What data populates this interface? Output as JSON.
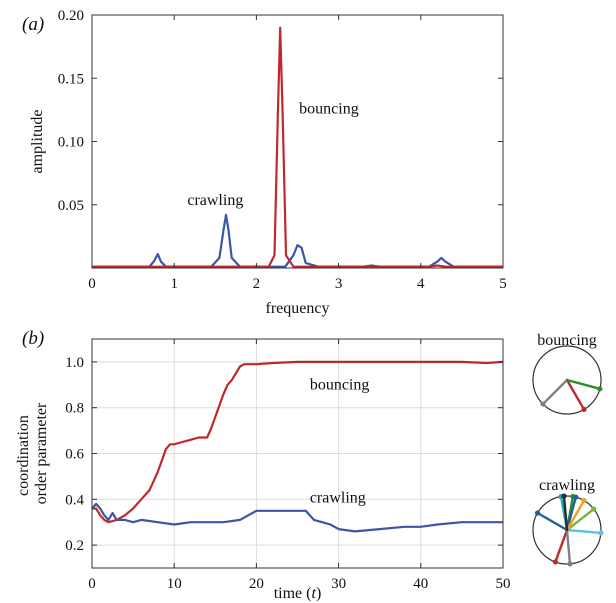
{
  "colors": {
    "bouncing": "#c0282c",
    "crawling": "#3c55a5",
    "axis": "#333333"
  },
  "panel_labels": {
    "a": "(a)",
    "b": "(b)"
  },
  "chart_data": [
    {
      "type": "line",
      "panel": "(a)",
      "xlabel": "frequency",
      "ylabel": "amplitude",
      "xlim": [
        0,
        5
      ],
      "ylim": [
        0,
        0.2
      ],
      "xticks": [
        0,
        1,
        2,
        3,
        4,
        5
      ],
      "xtick_labels": [
        "0",
        "1",
        "2",
        "3",
        "4",
        "5"
      ],
      "yticks": [
        0.05,
        0.1,
        0.15,
        0.2
      ],
      "ytick_labels": [
        "0.05",
        "0.10",
        "0.15",
        "0.20"
      ],
      "grid": false,
      "series": [
        {
          "name": "crawling",
          "color_key": "crawling",
          "x": [
            0,
            0.7,
            0.76,
            0.8,
            0.84,
            0.9,
            1.0,
            1.45,
            1.55,
            1.6,
            1.63,
            1.66,
            1.7,
            1.8,
            2.0,
            2.35,
            2.45,
            2.5,
            2.55,
            2.6,
            2.75,
            3.3,
            3.4,
            3.5,
            4.1,
            4.2,
            4.25,
            4.3,
            4.4,
            4.5,
            5.0
          ],
          "y": [
            0.001,
            0.001,
            0.006,
            0.011,
            0.005,
            0.001,
            0.001,
            0.001,
            0.008,
            0.03,
            0.042,
            0.03,
            0.008,
            0.001,
            0.001,
            0.001,
            0.01,
            0.018,
            0.016,
            0.004,
            0.001,
            0.001,
            0.002,
            0.001,
            0.001,
            0.005,
            0.008,
            0.005,
            0.001,
            0.001,
            0.001
          ]
        },
        {
          "name": "bouncing",
          "color_key": "bouncing",
          "x": [
            0,
            2.15,
            2.22,
            2.26,
            2.29,
            2.32,
            2.36,
            2.45,
            4.1,
            4.2,
            4.3,
            5.0
          ],
          "y": [
            0.001,
            0.001,
            0.01,
            0.12,
            0.19,
            0.12,
            0.01,
            0.001,
            0.001,
            0.002,
            0.001,
            0.001
          ]
        }
      ],
      "annotations": [
        {
          "text": "bouncing",
          "x": 2.52,
          "y": 0.122,
          "color_key": "bouncing"
        },
        {
          "text": "crawling",
          "x": 1.16,
          "y": 0.05,
          "color_key": "crawling"
        }
      ]
    },
    {
      "type": "line",
      "panel": "(b)",
      "xlabel": "time (t)",
      "xlabel_parts": [
        "time (",
        "t",
        ")"
      ],
      "ylabel": "coordination order parameter",
      "ylabel_lines": [
        "coordination",
        "order parameter"
      ],
      "xlim": [
        0,
        50
      ],
      "ylim": [
        0.1,
        1.1
      ],
      "xticks": [
        0,
        10,
        20,
        30,
        40,
        50
      ],
      "xtick_labels": [
        "0",
        "10",
        "20",
        "30",
        "40",
        "50"
      ],
      "yticks": [
        0.2,
        0.4,
        0.6,
        0.8,
        1.0
      ],
      "ytick_labels": [
        "0.2",
        "0.4",
        "0.6",
        "0.8",
        "1.0"
      ],
      "grid": true,
      "series": [
        {
          "name": "bouncing",
          "color_key": "bouncing",
          "x": [
            0,
            0.5,
            1,
            1.5,
            2,
            3,
            4,
            5,
            6,
            7,
            7.5,
            8,
            8.5,
            9,
            9.5,
            10,
            11,
            12,
            13,
            14,
            14.5,
            15,
            15.5,
            16,
            16.5,
            17,
            17.5,
            18,
            18.5,
            19,
            20,
            22,
            25,
            27,
            30,
            35,
            40,
            45,
            48,
            50
          ],
          "y": [
            0.36,
            0.36,
            0.33,
            0.31,
            0.3,
            0.31,
            0.33,
            0.36,
            0.4,
            0.44,
            0.48,
            0.52,
            0.57,
            0.62,
            0.64,
            0.64,
            0.65,
            0.66,
            0.67,
            0.67,
            0.71,
            0.76,
            0.81,
            0.86,
            0.9,
            0.92,
            0.95,
            0.98,
            0.99,
            0.99,
            0.99,
            0.995,
            1.0,
            1.0,
            1.0,
            1.0,
            1.0,
            1.0,
            0.995,
            1.0
          ]
        },
        {
          "name": "crawling",
          "color_key": "crawling",
          "x": [
            0,
            0.5,
            1,
            1.5,
            2,
            2.5,
            3,
            4,
            5,
            6,
            8,
            10,
            12,
            14,
            16,
            18,
            19,
            20,
            22,
            24,
            26,
            26.5,
            27,
            28,
            29,
            30,
            32,
            35,
            38,
            40,
            42,
            45,
            48,
            50
          ],
          "y": [
            0.36,
            0.38,
            0.36,
            0.33,
            0.31,
            0.34,
            0.31,
            0.31,
            0.3,
            0.31,
            0.3,
            0.29,
            0.3,
            0.3,
            0.3,
            0.31,
            0.33,
            0.35,
            0.35,
            0.35,
            0.35,
            0.33,
            0.31,
            0.3,
            0.29,
            0.27,
            0.26,
            0.27,
            0.28,
            0.28,
            0.29,
            0.3,
            0.3,
            0.3
          ]
        }
      ],
      "annotations": [
        {
          "text": "bouncing",
          "x": 26.5,
          "y": 0.88,
          "color_key": "bouncing"
        },
        {
          "text": "crawling",
          "x": 26.5,
          "y": 0.385,
          "color_key": "crawling"
        }
      ]
    }
  ],
  "insets": [
    {
      "label": "bouncing",
      "color_key": "bouncing",
      "segments": [
        {
          "angle": 300,
          "color": "#c0282c"
        },
        {
          "angle": 225,
          "color": "#808080"
        },
        {
          "angle": 345,
          "color": "#2e8b2e"
        }
      ]
    },
    {
      "label": "crawling",
      "color_key": "crawling",
      "segments": [
        {
          "angle": 80,
          "color": "#2e8b2e"
        },
        {
          "angle": 100,
          "color": "#22a6b3"
        },
        {
          "angle": 75,
          "color": "#1f5fa0"
        },
        {
          "angle": 250,
          "color": "#c0282c"
        },
        {
          "angle": 275,
          "color": "#808080"
        },
        {
          "angle": 355,
          "color": "#5bc0eb"
        },
        {
          "angle": 38,
          "color": "#7cb342"
        },
        {
          "angle": 60,
          "color": "#f0a020"
        },
        {
          "angle": 150,
          "color": "#1f5fa0"
        },
        {
          "angle": 95,
          "color": "#2b2b2b"
        }
      ]
    }
  ]
}
